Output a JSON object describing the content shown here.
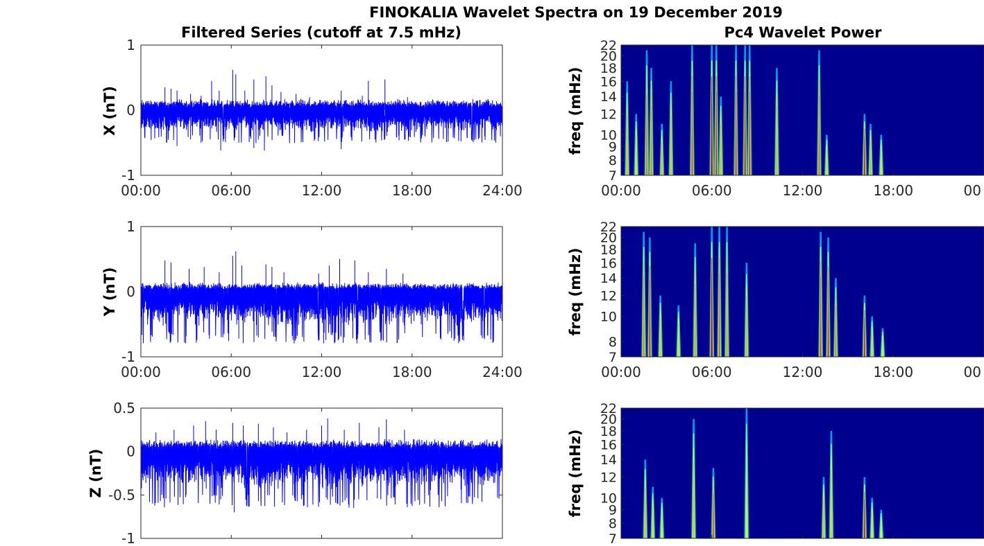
{
  "figure": {
    "title": "FINOKALIA Wavelet Spectra on 19 December 2019",
    "left_title": "Filtered Series (cutoff at 7.5 mHz)",
    "right_title": "Pc4 Wavelet Power"
  },
  "colors": {
    "series": "#0000ff",
    "spectrum_background": "#00008f",
    "axis": "#262626"
  },
  "chart_data": [
    {
      "type": "line",
      "title": "Filtered Series (cutoff at 7.5 mHz)",
      "ylabel": "X (nT)",
      "xlabel": "",
      "xlim": [
        "00:00",
        "24:00"
      ],
      "x_ticks": [
        "00:00",
        "06:00",
        "12:00",
        "18:00",
        "24:00"
      ],
      "ylim": [
        -1,
        1
      ],
      "y_ticks": [
        "1",
        "0",
        "-1"
      ],
      "series": [
        {
          "values_summary": {
            "baseline": 0,
            "typical_envelope": [
              -0.35,
              0.18
            ]
          },
          "spikes_hours": [
            1.6,
            2.0,
            2.4,
            3.3,
            4.0,
            4.7,
            5.2,
            6.1,
            6.3,
            6.9,
            7.5,
            8.3,
            8.7,
            9.3,
            10.3,
            11.2,
            13.3,
            14.7,
            15.1,
            16.2,
            17.7
          ],
          "spike_peaks": [
            0.35,
            0.33,
            0.3,
            0.25,
            0.22,
            0.45,
            0.3,
            0.62,
            0.55,
            0.3,
            0.47,
            0.52,
            0.38,
            0.28,
            0.25,
            0.2,
            0.3,
            0.22,
            0.45,
            0.47,
            0.2
          ],
          "dip_hours": [
            1.7,
            2.4,
            3.3,
            4.0,
            5.3,
            6.5,
            7.5,
            7.8,
            8.2,
            13.3,
            17.5
          ],
          "dip_lows": [
            -0.5,
            -0.55,
            -0.45,
            -0.5,
            -0.62,
            -0.5,
            -0.58,
            -0.45,
            -0.62,
            -0.6,
            -0.45
          ]
        }
      ]
    },
    {
      "type": "line",
      "ylabel": "Y (nT)",
      "xlabel": "",
      "xlim": [
        "00:00",
        "24:00"
      ],
      "x_ticks": [
        "00:00",
        "06:00",
        "12:00",
        "18:00",
        "24:00"
      ],
      "ylim": [
        -1,
        1
      ],
      "y_ticks": [
        "1",
        "0",
        "-1"
      ],
      "series": [
        {
          "values_summary": {
            "baseline": 0,
            "typical_envelope": [
              -0.55,
              0.15
            ]
          },
          "spikes_hours": [
            1.6,
            2.0,
            3.2,
            4.2,
            5.2,
            6.1,
            6.3,
            6.7,
            8.3,
            8.7,
            9.5,
            11.8,
            12.5,
            13.2,
            14.2,
            15.1,
            16.3,
            17.4
          ],
          "spike_peaks": [
            0.48,
            0.45,
            0.35,
            0.38,
            0.3,
            0.55,
            0.62,
            0.4,
            0.42,
            0.38,
            0.3,
            0.28,
            0.4,
            0.5,
            0.48,
            0.3,
            0.35,
            0.28
          ],
          "dip_hours": [
            6.5,
            7.8,
            13.5,
            16.1
          ],
          "dip_lows": [
            -0.72,
            -0.7,
            -0.7,
            -0.75
          ]
        }
      ]
    },
    {
      "type": "line",
      "ylabel": "Z (nT)",
      "xlabel": "",
      "xlim": [
        "00:00",
        "24:00"
      ],
      "ylim": [
        -1,
        0.5
      ],
      "y_ticks": [
        "0.5",
        "0",
        "-0.5",
        "-1"
      ],
      "series": [
        {
          "values_summary": {
            "baseline": 0,
            "typical_envelope": [
              -0.45,
              0.15
            ]
          },
          "spikes_hours": [
            1.0,
            2.2,
            3.5,
            4.3,
            5.0,
            6.1,
            6.8,
            7.8,
            8.8,
            9.7,
            11.0,
            12.0,
            12.4,
            13.5,
            14.5,
            15.8,
            16.3,
            17.5
          ],
          "spike_peaks": [
            0.22,
            0.25,
            0.3,
            0.35,
            0.25,
            0.33,
            0.3,
            0.32,
            0.28,
            0.22,
            0.25,
            0.3,
            0.38,
            0.25,
            0.33,
            0.28,
            0.37,
            0.25
          ],
          "dip_hours": [
            1.3,
            5.3,
            6.2,
            10.2,
            12.3,
            15.7
          ],
          "dip_lows": [
            -0.57,
            -0.55,
            -0.7,
            -0.53,
            -0.53,
            -0.54
          ]
        }
      ]
    },
    {
      "type": "heatmap",
      "title": "Pc4 Wavelet Power",
      "ylabel": "freq (mHz)",
      "xlim": [
        "00:00",
        "24:00"
      ],
      "x_ticks": [
        "00:00",
        "06:00",
        "12:00",
        "18:00",
        "00"
      ],
      "ylim": [
        7,
        22
      ],
      "y_scale": "log",
      "y_ticks": [
        "22",
        "20",
        "18",
        "16",
        "14",
        "12",
        "10",
        "9",
        "8",
        "7"
      ],
      "bursts": [
        {
          "hour": 0.4,
          "top_mhz": 16,
          "intensity": 0.5
        },
        {
          "hour": 1.0,
          "top_mhz": 12,
          "intensity": 0.4
        },
        {
          "hour": 1.7,
          "top_mhz": 21,
          "intensity": 0.65
        },
        {
          "hour": 2.0,
          "top_mhz": 18,
          "intensity": 0.6
        },
        {
          "hour": 2.7,
          "top_mhz": 11,
          "intensity": 0.5
        },
        {
          "hour": 3.3,
          "top_mhz": 16,
          "intensity": 0.5
        },
        {
          "hour": 4.7,
          "top_mhz": 22,
          "intensity": 0.7
        },
        {
          "hour": 6.0,
          "top_mhz": 22,
          "intensity": 1.0
        },
        {
          "hour": 6.3,
          "top_mhz": 22,
          "intensity": 0.8
        },
        {
          "hour": 6.6,
          "top_mhz": 14,
          "intensity": 0.5
        },
        {
          "hour": 7.6,
          "top_mhz": 22,
          "intensity": 0.75
        },
        {
          "hour": 8.2,
          "top_mhz": 22,
          "intensity": 0.85
        },
        {
          "hour": 8.5,
          "top_mhz": 22,
          "intensity": 0.75
        },
        {
          "hour": 10.3,
          "top_mhz": 18,
          "intensity": 0.5
        },
        {
          "hour": 13.1,
          "top_mhz": 21,
          "intensity": 0.65
        },
        {
          "hour": 13.6,
          "top_mhz": 10,
          "intensity": 0.4
        },
        {
          "hour": 16.1,
          "top_mhz": 12,
          "intensity": 0.85
        },
        {
          "hour": 16.5,
          "top_mhz": 11,
          "intensity": 0.5
        },
        {
          "hour": 17.2,
          "top_mhz": 10,
          "intensity": 0.4
        }
      ]
    },
    {
      "type": "heatmap",
      "ylabel": "freq (mHz)",
      "xlim": [
        "00:00",
        "24:00"
      ],
      "x_ticks": [
        "00:00",
        "06:00",
        "12:00",
        "18:00",
        "00"
      ],
      "ylim": [
        7,
        22
      ],
      "y_scale": "log",
      "y_ticks": [
        "22",
        "20",
        "18",
        "16",
        "14",
        "12",
        "10",
        "8",
        "7"
      ],
      "bursts": [
        {
          "hour": 1.5,
          "top_mhz": 21,
          "intensity": 0.6
        },
        {
          "hour": 1.9,
          "top_mhz": 20,
          "intensity": 0.8
        },
        {
          "hour": 2.6,
          "top_mhz": 12,
          "intensity": 0.45
        },
        {
          "hour": 3.8,
          "top_mhz": 11,
          "intensity": 0.4
        },
        {
          "hour": 4.9,
          "top_mhz": 19,
          "intensity": 0.55
        },
        {
          "hour": 6.0,
          "top_mhz": 22,
          "intensity": 1.0
        },
        {
          "hour": 6.5,
          "top_mhz": 22,
          "intensity": 0.65
        },
        {
          "hour": 7.0,
          "top_mhz": 22,
          "intensity": 0.55
        },
        {
          "hour": 8.3,
          "top_mhz": 16,
          "intensity": 0.5
        },
        {
          "hour": 13.2,
          "top_mhz": 21,
          "intensity": 0.7
        },
        {
          "hour": 13.7,
          "top_mhz": 20,
          "intensity": 0.75
        },
        {
          "hour": 14.2,
          "top_mhz": 14,
          "intensity": 0.6
        },
        {
          "hour": 16.1,
          "top_mhz": 12,
          "intensity": 0.85
        },
        {
          "hour": 16.6,
          "top_mhz": 10,
          "intensity": 0.45
        },
        {
          "hour": 17.3,
          "top_mhz": 9,
          "intensity": 0.35
        }
      ]
    },
    {
      "type": "heatmap",
      "ylabel": "freq (mHz)",
      "xlim": [
        "00:00",
        "24:00"
      ],
      "ylim": [
        7,
        22
      ],
      "y_scale": "log",
      "y_ticks": [
        "22",
        "20",
        "18",
        "16",
        "14",
        "12",
        "10",
        "9",
        "8",
        "7"
      ],
      "bursts": [
        {
          "hour": 1.6,
          "top_mhz": 14,
          "intensity": 0.5
        },
        {
          "hour": 2.1,
          "top_mhz": 11,
          "intensity": 0.4
        },
        {
          "hour": 2.7,
          "top_mhz": 10,
          "intensity": 0.35
        },
        {
          "hour": 4.8,
          "top_mhz": 20,
          "intensity": 0.45
        },
        {
          "hour": 6.1,
          "top_mhz": 13,
          "intensity": 0.7
        },
        {
          "hour": 8.3,
          "top_mhz": 22,
          "intensity": 0.3
        },
        {
          "hour": 13.4,
          "top_mhz": 12,
          "intensity": 0.5
        },
        {
          "hour": 13.9,
          "top_mhz": 18,
          "intensity": 0.45
        },
        {
          "hour": 16.1,
          "top_mhz": 12,
          "intensity": 0.85
        },
        {
          "hour": 16.6,
          "top_mhz": 10,
          "intensity": 0.4
        },
        {
          "hour": 17.2,
          "top_mhz": 9,
          "intensity": 0.3
        }
      ]
    }
  ]
}
